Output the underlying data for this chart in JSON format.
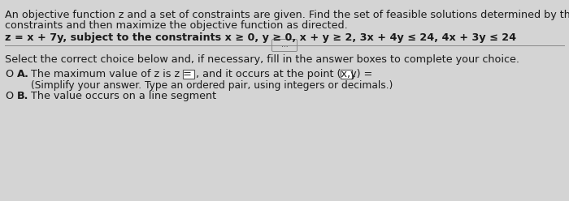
{
  "bg_color": "#d4d4d4",
  "line1": "An objective function z and a set of constraints are given. Find the set of feasible solutions determined by the given",
  "line2": "constraints and then maximize the objective function as directed.",
  "line3": "z = x + 7y, subject to the constraints x ≥ 0, y ≥ 0, x + y ≥ 2, 3x + 4y ≤ 24, 4x + 3y ≤ 24",
  "dots_label": "...",
  "select_text": "Select the correct choice below and, if necessary, fill in the answer boxes to complete your choice.",
  "option_a_pre": "O A.",
  "option_a_main": "The maximum value of z is z =",
  "option_a_mid": ", and it occurs at the point (x,y) =",
  "option_a_dot": ".",
  "option_a_sub": "(Simplify your answer. Type an ordered pair, using integers or decimals.)",
  "option_b_pre": "O B.",
  "option_b_text": "The value occurs on a line segment",
  "fs": 9.2,
  "fs_small": 8.8
}
